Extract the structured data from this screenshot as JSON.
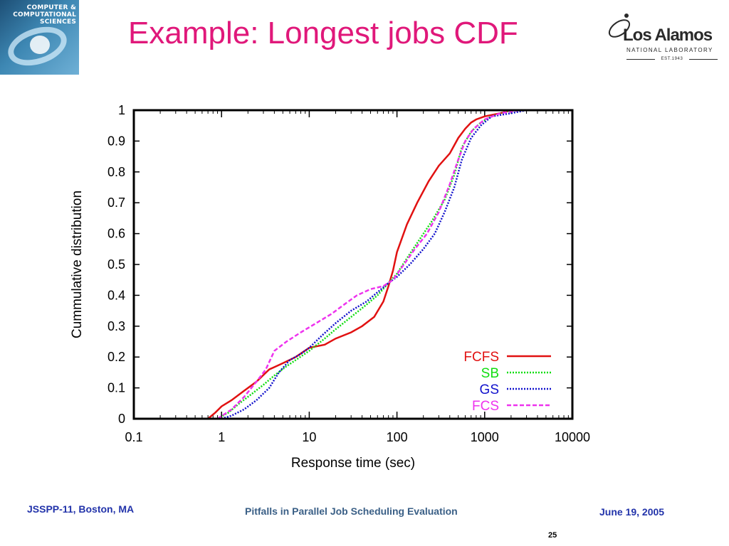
{
  "slide": {
    "title": "Example: Longest jobs CDF",
    "footer_left": "JSSPP-11, Boston, MA",
    "footer_center": "Pitfalls in Parallel Job Scheduling Evaluation",
    "footer_right": "June 19, 2005",
    "page_number": "25"
  },
  "logos": {
    "ccs": "COMPUTER & COMPUTATIONAL SCIENCES",
    "lanl_name": "Los Alamos",
    "lanl_sub": "NATIONAL LABORATORY",
    "lanl_est": "EST.1943"
  },
  "colors": {
    "title": "#e0187a",
    "footer": "#2233aa",
    "FCFS": "#e11111",
    "SB": "#11dd11",
    "GS": "#1111cc",
    "FCS": "#ee33ee"
  },
  "chart_data": {
    "type": "line",
    "title": "",
    "xlabel": "Response time (sec)",
    "ylabel": "Cummulative distribution",
    "xscale": "log",
    "xlim": [
      0.1,
      10000
    ],
    "ylim": [
      0,
      1
    ],
    "xticks": [
      "0.1",
      "1",
      "10",
      "100",
      "1000",
      "10000"
    ],
    "yticks": [
      "0",
      "0.1",
      "0.2",
      "0.3",
      "0.4",
      "0.5",
      "0.6",
      "0.7",
      "0.8",
      "0.9",
      "1"
    ],
    "legend_position": "bottom-right",
    "series": [
      {
        "name": "FCFS",
        "style": "solid",
        "x": [
          0.7,
          0.85,
          1,
          1.3,
          1.8,
          2.5,
          3.5,
          5,
          7,
          10,
          15,
          20,
          30,
          40,
          55,
          70,
          80,
          90,
          100,
          130,
          170,
          230,
          300,
          400,
          500,
          600,
          700,
          800,
          1000,
          1500,
          2000
        ],
        "y": [
          0,
          0.02,
          0.04,
          0.06,
          0.09,
          0.12,
          0.16,
          0.18,
          0.2,
          0.23,
          0.24,
          0.26,
          0.28,
          0.3,
          0.33,
          0.38,
          0.43,
          0.48,
          0.54,
          0.63,
          0.7,
          0.77,
          0.82,
          0.86,
          0.91,
          0.94,
          0.96,
          0.97,
          0.98,
          0.99,
          1.0
        ]
      },
      {
        "name": "SB",
        "style": "dotted",
        "x": [
          0.9,
          1.2,
          1.6,
          2.2,
          3,
          4,
          5.5,
          7,
          10,
          15,
          20,
          30,
          45,
          60,
          80,
          100,
          130,
          180,
          250,
          350,
          450,
          550,
          700,
          900,
          1200,
          2000
        ],
        "y": [
          0,
          0.02,
          0.05,
          0.08,
          0.11,
          0.14,
          0.17,
          0.19,
          0.22,
          0.26,
          0.29,
          0.33,
          0.37,
          0.4,
          0.44,
          0.47,
          0.52,
          0.58,
          0.64,
          0.71,
          0.79,
          0.88,
          0.93,
          0.96,
          0.98,
          1.0
        ]
      },
      {
        "name": "GS",
        "style": "dotted",
        "x": [
          1.0,
          1.3,
          1.8,
          2.5,
          3.5,
          4.5,
          6,
          8,
          10,
          14,
          20,
          30,
          45,
          60,
          80,
          100,
          140,
          200,
          270,
          350,
          450,
          550,
          700,
          900,
          1200,
          2000,
          3000
        ],
        "y": [
          0,
          0.01,
          0.03,
          0.06,
          0.1,
          0.15,
          0.19,
          0.21,
          0.23,
          0.27,
          0.31,
          0.35,
          0.38,
          0.41,
          0.44,
          0.46,
          0.5,
          0.55,
          0.6,
          0.67,
          0.75,
          0.84,
          0.91,
          0.95,
          0.98,
          0.99,
          1.0
        ]
      },
      {
        "name": "FCS",
        "style": "dashed",
        "x": [
          0.9,
          1.3,
          1.8,
          2.5,
          3.2,
          4,
          5.5,
          8,
          12,
          18,
          25,
          35,
          50,
          70,
          90,
          120,
          160,
          220,
          300,
          400,
          500,
          600,
          750,
          1000,
          1500,
          2500
        ],
        "y": [
          0,
          0.03,
          0.07,
          0.12,
          0.16,
          0.22,
          0.25,
          0.28,
          0.31,
          0.34,
          0.37,
          0.4,
          0.42,
          0.43,
          0.45,
          0.5,
          0.55,
          0.6,
          0.67,
          0.76,
          0.84,
          0.9,
          0.94,
          0.97,
          0.99,
          1.0
        ]
      }
    ]
  }
}
